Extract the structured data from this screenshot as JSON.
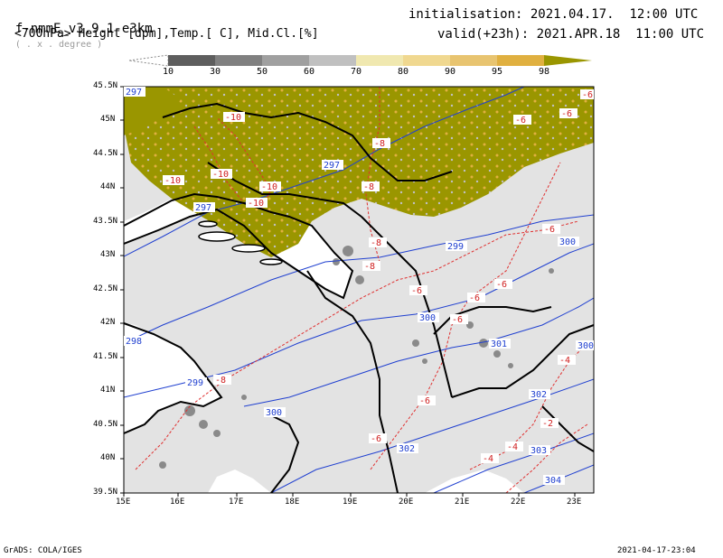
{
  "header": {
    "model": "f-nmmE_v3.9.1-e3km",
    "unit_note": "( . x . degree )",
    "subtitle": "<700hPa> Height [dpm],Temp.[ C], Mid.Cl.[%]",
    "init_label": "initialisation:",
    "init_value": "2021.04.17.  12:00 UTC",
    "valid_label": "valid(+23h):",
    "valid_value": "2021.APR.18  11:00 UTC"
  },
  "colorbar": {
    "labels": [
      "10",
      "30",
      "50",
      "60",
      "70",
      "80",
      "90",
      "95",
      "98"
    ],
    "colors": [
      "#5e5e5e",
      "#808080",
      "#a0a0a0",
      "#c0c0c0",
      "#f0e8b0",
      "#f0d890",
      "#e8c470",
      "#e0b040",
      "#9a9600"
    ]
  },
  "map": {
    "lat_labels": [
      "45.5N",
      "45N",
      "44.5N",
      "44N",
      "43.5N",
      "43N",
      "42.5N",
      "42N",
      "41.5N",
      "41N",
      "40.5N",
      "40N",
      "39.5N"
    ],
    "lon_labels": [
      "15E",
      "16E",
      "17E",
      "18E",
      "19E",
      "20E",
      "21E",
      "22E",
      "23E"
    ],
    "height_labels": [
      "297",
      "297",
      "297",
      "299",
      "299",
      "300",
      "300",
      "298",
      "300",
      "301",
      "302",
      "302",
      "303",
      "304",
      "300"
    ],
    "temp_labels": [
      "-10",
      "-10",
      "-10",
      "-10",
      "-10",
      "-8",
      "-8",
      "-8",
      "-8",
      "-8",
      "-6",
      "-6",
      "-6",
      "-6",
      "-6",
      "-6",
      "-6",
      "-6",
      "-6",
      "-6",
      "-4",
      "-4",
      "-4",
      "-2"
    ],
    "land_fill": "#e3e3e3",
    "sea_fill": "#ffffff",
    "cloud_color": "#9a9600"
  },
  "footer": {
    "left": "GrADS: COLA/IGES",
    "right": "2021-04-17-23:04"
  }
}
